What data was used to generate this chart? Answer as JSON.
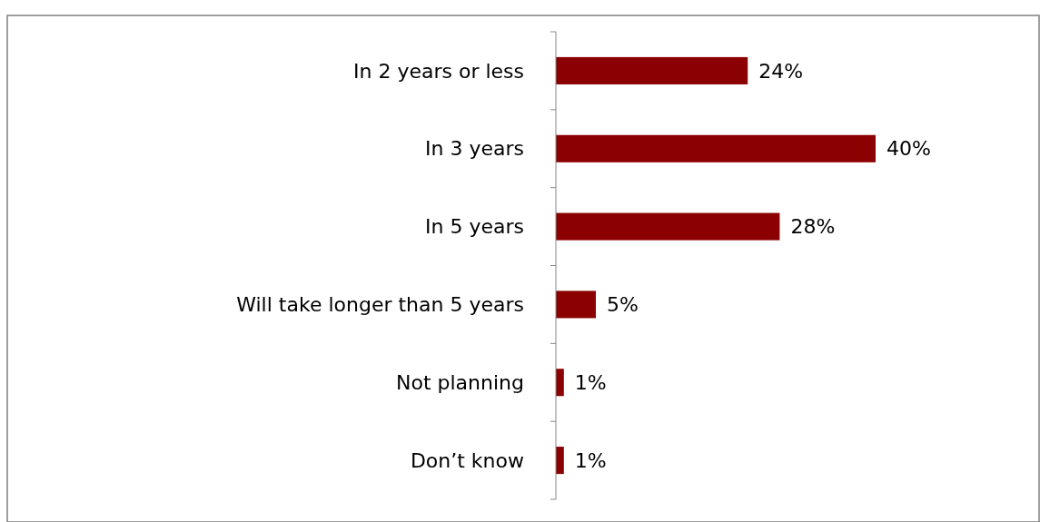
{
  "chart_data": {
    "type": "bar",
    "orientation": "horizontal",
    "categories": [
      "In 2 years or less",
      "In 3 years",
      "In 5 years",
      "Will take longer than 5 years",
      "Not planning",
      "Don’t know"
    ],
    "values": [
      24,
      40,
      28,
      5,
      1,
      1
    ],
    "color": "#8b0000",
    "data_labels": true,
    "value_labels": [
      "24%",
      "40%",
      "28%",
      "5%",
      "1%",
      "1%"
    ]
  }
}
